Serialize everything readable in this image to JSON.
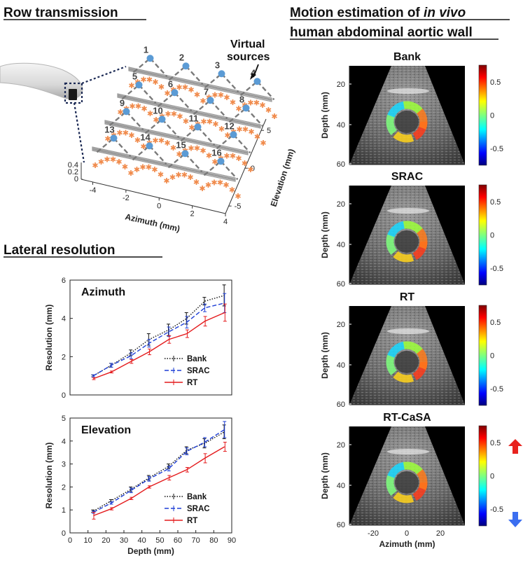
{
  "sections": {
    "row_transmission": "Row transmission",
    "lateral_resolution": "Lateral resolution",
    "motion_line1_a": "Motion estimation of ",
    "motion_line1_b": "in vivo",
    "motion_line2": "human abdominal aortic wall"
  },
  "diagram": {
    "virtual_sources_label": [
      "Virtual",
      "sources"
    ],
    "source_numbers": [
      "1",
      "2",
      "3",
      "4",
      "5",
      "6",
      "7",
      "8",
      "9",
      "10",
      "11",
      "12",
      "13",
      "14",
      "15",
      "16"
    ],
    "azimuth_label": "Azimuth (mm)",
    "elevation_label": "Elevation (mm)",
    "azimuth_ticks": [
      "-4",
      "-2",
      "0",
      "2",
      "4"
    ],
    "elevation_ticks": [
      "5",
      "0",
      "-5"
    ],
    "height_ticks": [
      "0.4",
      "0.2",
      "0"
    ],
    "colors": {
      "source": "#5b9bd5",
      "element": "#f08a4b",
      "row": "#9a9a9a"
    }
  },
  "chart_data": [
    {
      "type": "line",
      "title": "Azimuth",
      "xlabel": "",
      "ylabel": "Resolution (mm)",
      "x": [
        13,
        23,
        34,
        44,
        55,
        65,
        75,
        86
      ],
      "xlim": [
        0,
        90
      ],
      "ylim": [
        0,
        6
      ],
      "xticks": [],
      "yticks": [
        0,
        2,
        4,
        6
      ],
      "legend": "inside-lower-right",
      "series": [
        {
          "name": "Bank",
          "color": "#111111",
          "dash": "1.5,2",
          "values": [
            1.0,
            1.55,
            2.2,
            2.9,
            3.4,
            4.0,
            4.9,
            5.2
          ],
          "err": [
            0.05,
            0.1,
            0.15,
            0.3,
            0.3,
            0.3,
            0.2,
            0.55
          ]
        },
        {
          "name": "SRAC",
          "color": "#1f3fd6",
          "dash": "6,3",
          "values": [
            1.0,
            1.55,
            2.05,
            2.7,
            3.3,
            3.8,
            4.55,
            4.8
          ],
          "err": [
            0.05,
            0.1,
            0.15,
            0.2,
            0.25,
            0.3,
            0.2,
            0.5
          ]
        },
        {
          "name": "RT",
          "color": "#e41a1c",
          "dash": "",
          "values": [
            0.85,
            1.2,
            1.75,
            2.25,
            2.9,
            3.2,
            3.85,
            4.3
          ],
          "err": [
            0.05,
            0.05,
            0.1,
            0.15,
            0.2,
            0.2,
            0.25,
            0.45
          ]
        }
      ]
    },
    {
      "type": "line",
      "title": "Elevation",
      "xlabel": "Depth (mm)",
      "ylabel": "Resolution (mm)",
      "x": [
        13,
        23,
        34,
        44,
        55,
        65,
        75,
        86
      ],
      "xlim": [
        0,
        90
      ],
      "ylim": [
        0,
        5
      ],
      "xticks": [
        0,
        10,
        20,
        30,
        40,
        50,
        60,
        70,
        80,
        90
      ],
      "yticks": [
        0,
        1,
        2,
        3,
        4,
        5
      ],
      "legend": "inside-lower-right",
      "series": [
        {
          "name": "Bank",
          "color": "#111111",
          "dash": "1.5,2",
          "values": [
            0.95,
            1.4,
            1.9,
            2.4,
            2.9,
            3.6,
            3.9,
            4.4
          ],
          "err": [
            0.05,
            0.05,
            0.1,
            0.1,
            0.1,
            0.15,
            0.2,
            0.3
          ]
        },
        {
          "name": "SRAC",
          "color": "#1f3fd6",
          "dash": "6,3",
          "values": [
            0.9,
            1.3,
            1.85,
            2.35,
            2.8,
            3.55,
            3.95,
            4.5
          ],
          "err": [
            0.05,
            0.05,
            0.1,
            0.1,
            0.1,
            0.15,
            0.2,
            0.35
          ]
        },
        {
          "name": "RT",
          "color": "#e41a1c",
          "dash": "",
          "values": [
            0.75,
            1.05,
            1.5,
            2.0,
            2.4,
            2.75,
            3.25,
            3.75
          ],
          "err": [
            0.15,
            0.05,
            0.05,
            0.05,
            0.1,
            0.1,
            0.2,
            0.2
          ]
        }
      ]
    }
  ],
  "panels": [
    {
      "title": "Bank"
    },
    {
      "title": "SRAC"
    },
    {
      "title": "RT"
    },
    {
      "title": "RT-CaSA"
    }
  ],
  "us_axes": {
    "ylabel": "Depth (mm)",
    "xlabel": "Azimuth (mm)",
    "yticks": [
      "20",
      "40",
      "60"
    ],
    "xticks": [
      "-20",
      "0",
      "20"
    ],
    "colorbar_ticks": [
      "0.5",
      "0",
      "-0.5"
    ],
    "arrow_up_color": "#e8221e",
    "arrow_down_color": "#3b6ef0"
  }
}
